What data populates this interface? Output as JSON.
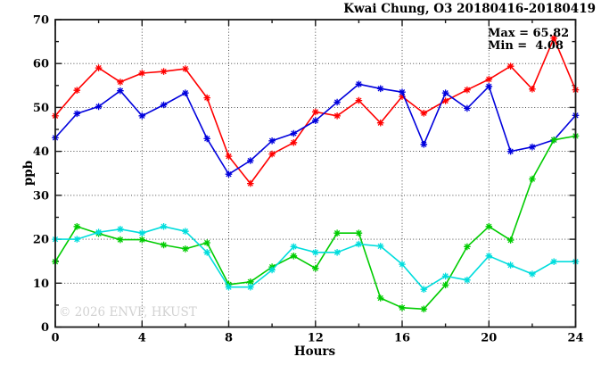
{
  "title": "Kwai Chung, O3 20180416-20180419",
  "annotation": {
    "max_label": "Max = 65.82",
    "min_label": "Min =  4.08"
  },
  "watermark": "© 2026 ENVF, HKUST",
  "chart_data": {
    "type": "line",
    "title": "Kwai Chung, O3 20180416-20180419",
    "xlabel": "Hours",
    "ylabel": "ppb",
    "xlim": [
      0,
      24
    ],
    "ylim": [
      0,
      70
    ],
    "x_major_ticks": [
      0,
      4,
      8,
      12,
      16,
      20,
      24
    ],
    "x_minor_step": 2,
    "y_major_ticks": [
      0,
      10,
      20,
      30,
      40,
      50,
      60,
      70
    ],
    "y_minor_step": 5,
    "grid": {
      "vertical_at": [
        4,
        8,
        12,
        16,
        20
      ],
      "horizontal_at": [
        10,
        20,
        30,
        40,
        50,
        60
      ]
    },
    "legend": "none",
    "max_value": 65.82,
    "min_value": 4.08,
    "x": [
      0,
      1,
      2,
      3,
      4,
      5,
      6,
      7,
      8,
      9,
      10,
      11,
      12,
      13,
      14,
      15,
      16,
      17,
      18,
      19,
      20,
      21,
      22,
      23,
      24
    ],
    "series": [
      {
        "name": "series-red",
        "color": "#ff0000",
        "values": [
          48.1,
          53.9,
          59.0,
          55.8,
          57.8,
          58.2,
          58.8,
          52.2,
          38.9,
          32.7,
          39.4,
          42.0,
          49.0,
          48.1,
          51.6,
          46.5,
          52.5,
          48.7,
          51.5,
          54.0,
          56.4,
          59.4,
          54.2,
          65.8,
          54.0
        ]
      },
      {
        "name": "series-blue",
        "color": "#0000dd",
        "values": [
          43.1,
          48.6,
          50.2,
          53.8,
          48.1,
          50.6,
          53.3,
          42.9,
          34.8,
          37.9,
          42.4,
          44.1,
          47.0,
          51.2,
          55.3,
          54.3,
          53.5,
          41.6,
          53.3,
          49.8,
          54.8,
          40.0,
          41.0,
          42.6,
          48.2
        ]
      },
      {
        "name": "series-green",
        "color": "#00cc00",
        "values": [
          14.9,
          22.9,
          21.3,
          19.9,
          19.9,
          18.7,
          17.8,
          19.2,
          9.7,
          10.3,
          13.7,
          16.2,
          13.4,
          21.4,
          21.4,
          6.6,
          4.4,
          4.1,
          9.6,
          18.3,
          22.9,
          19.8,
          33.7,
          42.6,
          43.5
        ]
      },
      {
        "name": "series-cyan",
        "color": "#00dddd",
        "values": [
          20.0,
          20.0,
          21.6,
          22.3,
          21.4,
          22.9,
          21.8,
          17.0,
          9.1,
          9.1,
          13.0,
          18.3,
          17.0,
          17.0,
          18.9,
          18.4,
          14.3,
          8.6,
          11.6,
          10.7,
          16.2,
          14.1,
          12.1,
          14.9,
          14.9
        ]
      }
    ]
  }
}
